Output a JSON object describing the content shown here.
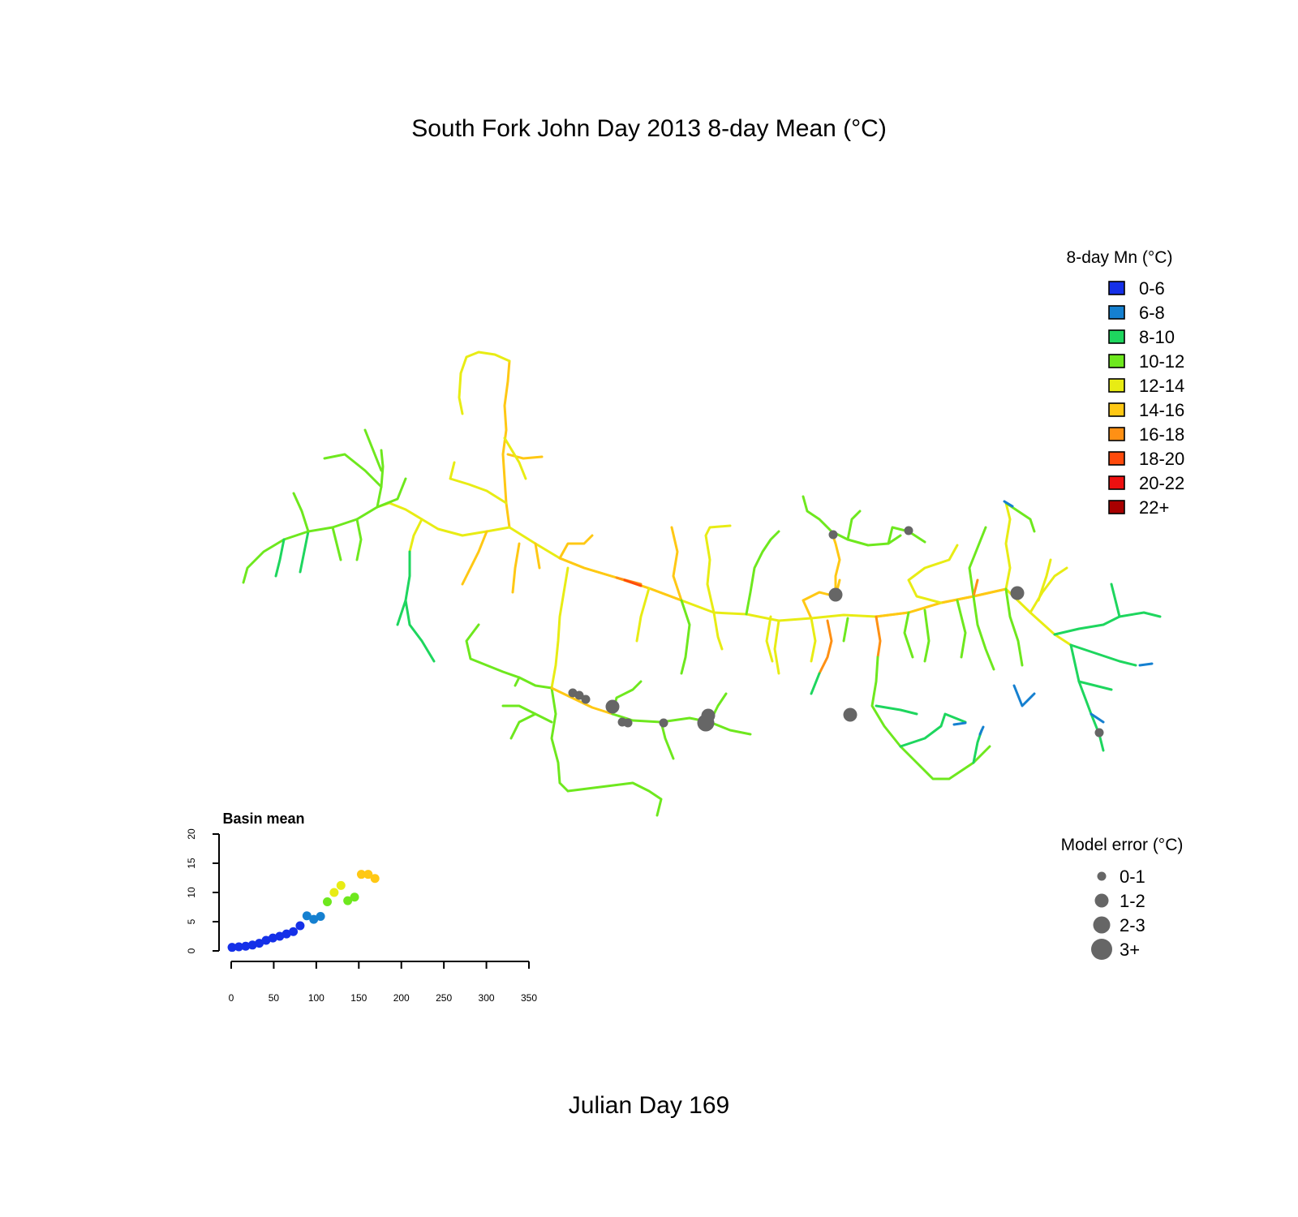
{
  "title": "South Fork John Day 2013 8-day Mean (°C)",
  "footer": "Julian Day 169",
  "temperature_legend": {
    "title": "8-day Mn (°C)",
    "items": [
      {
        "label": "0-6",
        "color": "#1530e8"
      },
      {
        "label": "6-8",
        "color": "#1580d0"
      },
      {
        "label": "8-10",
        "color": "#1ed65e"
      },
      {
        "label": "10-12",
        "color": "#6ee81e"
      },
      {
        "label": "12-14",
        "color": "#e8ec14"
      },
      {
        "label": "14-16",
        "color": "#ffc814"
      },
      {
        "label": "16-18",
        "color": "#ff9014"
      },
      {
        "label": "18-20",
        "color": "#ff4a0c"
      },
      {
        "label": "20-22",
        "color": "#ee1010"
      },
      {
        "label": "22+",
        "color": "#a80000"
      }
    ]
  },
  "error_legend": {
    "title": "Model error (°C)",
    "color": "#666666",
    "items": [
      {
        "label": "0-1",
        "size_class": 1
      },
      {
        "label": "1-2",
        "size_class": 2
      },
      {
        "label": "2-3",
        "size_class": 3
      },
      {
        "label": "3+",
        "size_class": 4
      }
    ]
  },
  "chart_data": {
    "type": "scatter",
    "title": "Basin mean",
    "xlabel": "",
    "ylabel": "",
    "xlim": [
      0,
      350
    ],
    "ylim": [
      0,
      20
    ],
    "x_ticks": [
      0,
      50,
      100,
      150,
      200,
      250,
      300,
      350
    ],
    "y_ticks": [
      0,
      5,
      10,
      15,
      20
    ],
    "points": [
      {
        "x": 1,
        "y": 0.6,
        "color": "#1530e8"
      },
      {
        "x": 9,
        "y": 0.7,
        "color": "#1530e8"
      },
      {
        "x": 17,
        "y": 0.8,
        "color": "#1530e8"
      },
      {
        "x": 25,
        "y": 1.0,
        "color": "#1530e8"
      },
      {
        "x": 33,
        "y": 1.3,
        "color": "#1530e8"
      },
      {
        "x": 41,
        "y": 1.8,
        "color": "#1530e8"
      },
      {
        "x": 49,
        "y": 2.2,
        "color": "#1530e8"
      },
      {
        "x": 57,
        "y": 2.5,
        "color": "#1530e8"
      },
      {
        "x": 65,
        "y": 2.9,
        "color": "#1530e8"
      },
      {
        "x": 73,
        "y": 3.3,
        "color": "#1530e8"
      },
      {
        "x": 81,
        "y": 4.3,
        "color": "#1530e8"
      },
      {
        "x": 89,
        "y": 6.0,
        "color": "#1580d0"
      },
      {
        "x": 97,
        "y": 5.4,
        "color": "#1580d0"
      },
      {
        "x": 105,
        "y": 5.9,
        "color": "#1580d0"
      },
      {
        "x": 113,
        "y": 8.4,
        "color": "#6ee81e"
      },
      {
        "x": 121,
        "y": 10.0,
        "color": "#e8ec14"
      },
      {
        "x": 129,
        "y": 11.2,
        "color": "#e8ec14"
      },
      {
        "x": 137,
        "y": 8.6,
        "color": "#6ee81e"
      },
      {
        "x": 145,
        "y": 9.2,
        "color": "#6ee81e"
      },
      {
        "x": 153,
        "y": 13.1,
        "color": "#ffc814"
      },
      {
        "x": 161,
        "y": 13.1,
        "color": "#ffc814"
      },
      {
        "x": 169,
        "y": 12.4,
        "color": "#ffc814"
      }
    ]
  },
  "model_error_sites": [
    {
      "size_class": 1
    },
    {
      "size_class": 1
    },
    {
      "size_class": 3
    },
    {
      "size_class": 3
    },
    {
      "size_class": 1
    },
    {
      "size_class": 1
    },
    {
      "size_class": 1
    },
    {
      "size_class": 3
    },
    {
      "size_class": 1
    },
    {
      "size_class": 1
    },
    {
      "size_class": 1
    },
    {
      "size_class": 1
    },
    {
      "size_class": 3
    },
    {
      "size_class": 4
    },
    {
      "size_class": 3
    },
    {
      "size_class": 1
    }
  ]
}
